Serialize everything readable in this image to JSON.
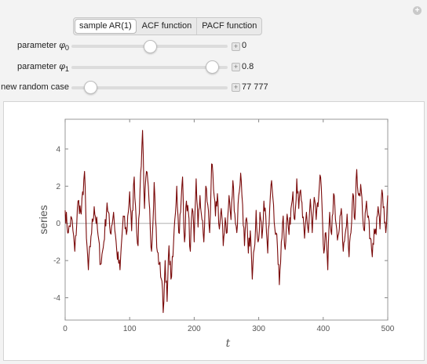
{
  "tabs": [
    {
      "label": "sample AR(1)",
      "active": true
    },
    {
      "label": "ACF function",
      "active": false
    },
    {
      "label": "PACF function",
      "active": false
    }
  ],
  "controls": [
    {
      "label_prefix": "parameter ",
      "symbol": "φ",
      "subscript": "0",
      "value": "0",
      "fraction": 0.5
    },
    {
      "label_prefix": "parameter ",
      "symbol": "φ",
      "subscript": "1",
      "value": "0.8",
      "fraction": 0.9
    },
    {
      "label_prefix": "new random case",
      "symbol": "",
      "subscript": "",
      "value": "77 777",
      "fraction": 0.12
    }
  ],
  "chart_data": {
    "type": "line",
    "xlabel": "t",
    "ylabel": "series",
    "xlim": [
      0,
      500
    ],
    "ylim": [
      -5.2,
      5.6
    ],
    "xticks": [
      0,
      100,
      200,
      300,
      400,
      500
    ],
    "yticks": [
      -4,
      -2,
      0,
      2,
      4
    ],
    "series_color": "#7a0a0a",
    "keypoints": [
      [
        0,
        0.7
      ],
      [
        5,
        -0.5
      ],
      [
        10,
        0.3
      ],
      [
        15,
        -1.5
      ],
      [
        20,
        1.2
      ],
      [
        25,
        0.5
      ],
      [
        30,
        2.8
      ],
      [
        33,
        -0.8
      ],
      [
        36,
        -2.5
      ],
      [
        40,
        -0.7
      ],
      [
        45,
        0.9
      ],
      [
        50,
        -0.3
      ],
      [
        55,
        -2.2
      ],
      [
        60,
        -1.0
      ],
      [
        65,
        1.1
      ],
      [
        70,
        -0.5
      ],
      [
        75,
        0.6
      ],
      [
        80,
        -1.5
      ],
      [
        85,
        -2.5
      ],
      [
        90,
        0.4
      ],
      [
        95,
        -0.6
      ],
      [
        100,
        1.7
      ],
      [
        103,
        -0.4
      ],
      [
        107,
        2.5
      ],
      [
        110,
        0.3
      ],
      [
        113,
        -1.2
      ],
      [
        116,
        1.8
      ],
      [
        120,
        5.0
      ],
      [
        123,
        0.8
      ],
      [
        126,
        2.8
      ],
      [
        130,
        1.2
      ],
      [
        134,
        -1.5
      ],
      [
        138,
        2.2
      ],
      [
        142,
        -1.3
      ],
      [
        146,
        -2.2
      ],
      [
        150,
        -3.1
      ],
      [
        152,
        -4.8
      ],
      [
        155,
        -2.0
      ],
      [
        158,
        -4.2
      ],
      [
        161,
        -1.2
      ],
      [
        164,
        -3.0
      ],
      [
        167,
        -1.8
      ],
      [
        170,
        0.2
      ],
      [
        173,
        2.0
      ],
      [
        176,
        -0.5
      ],
      [
        179,
        0.6
      ],
      [
        182,
        2.5
      ],
      [
        185,
        -1.0
      ],
      [
        188,
        1.2
      ],
      [
        191,
        0.6
      ],
      [
        194,
        -1.5
      ],
      [
        197,
        0.8
      ],
      [
        200,
        -1.0
      ],
      [
        203,
        2.4
      ],
      [
        206,
        -0.2
      ],
      [
        209,
        1.5
      ],
      [
        212,
        0.2
      ],
      [
        215,
        -1.0
      ],
      [
        218,
        2.0
      ],
      [
        221,
        1.0
      ],
      [
        224,
        -0.5
      ],
      [
        227,
        3.2
      ],
      [
        230,
        1.8
      ],
      [
        233,
        0.4
      ],
      [
        236,
        1.6
      ],
      [
        239,
        -0.3
      ],
      [
        242,
        0.8
      ],
      [
        245,
        -1.2
      ],
      [
        248,
        0.3
      ],
      [
        251,
        -0.5
      ],
      [
        254,
        1.5
      ],
      [
        257,
        0.2
      ],
      [
        260,
        2.3
      ],
      [
        263,
        0.5
      ],
      [
        266,
        -0.5
      ],
      [
        269,
        1.5
      ],
      [
        272,
        2.7
      ],
      [
        275,
        1.0
      ],
      [
        278,
        -1.2
      ],
      [
        281,
        0.3
      ],
      [
        284,
        -1.6
      ],
      [
        287,
        -0.4
      ],
      [
        290,
        -3.0
      ],
      [
        293,
        -1.4
      ],
      [
        296,
        0.7
      ],
      [
        299,
        -1.0
      ],
      [
        302,
        0.6
      ],
      [
        305,
        -0.8
      ],
      [
        308,
        1.2
      ],
      [
        311,
        0.4
      ],
      [
        314,
        -1.6
      ],
      [
        317,
        0.8
      ],
      [
        320,
        2.3
      ],
      [
        323,
        1.0
      ],
      [
        326,
        -0.6
      ],
      [
        329,
        -1.2
      ],
      [
        332,
        -3.3
      ],
      [
        335,
        -1.0
      ],
      [
        338,
        0.4
      ],
      [
        341,
        -1.4
      ],
      [
        344,
        0.5
      ],
      [
        347,
        -0.6
      ],
      [
        350,
        0.8
      ],
      [
        353,
        1.7
      ],
      [
        356,
        0.2
      ],
      [
        359,
        2.4
      ],
      [
        362,
        0.8
      ],
      [
        365,
        1.8
      ],
      [
        368,
        0.3
      ],
      [
        371,
        -0.8
      ],
      [
        374,
        0.6
      ],
      [
        377,
        -0.5
      ],
      [
        380,
        1.3
      ],
      [
        383,
        -0.5
      ],
      [
        386,
        1.4
      ],
      [
        389,
        0.2
      ],
      [
        392,
        0.9
      ],
      [
        395,
        2.6
      ],
      [
        398,
        1.0
      ],
      [
        401,
        -1.6
      ],
      [
        404,
        -0.5
      ],
      [
        407,
        -2.5
      ],
      [
        410,
        0.6
      ],
      [
        413,
        -0.6
      ],
      [
        416,
        1.6
      ],
      [
        419,
        0.2
      ],
      [
        422,
        -0.9
      ],
      [
        425,
        -0.3
      ],
      [
        428,
        0.8
      ],
      [
        431,
        -1.5
      ],
      [
        434,
        -0.6
      ],
      [
        437,
        0.5
      ],
      [
        440,
        -1.8
      ],
      [
        443,
        -0.5
      ],
      [
        446,
        1.6
      ],
      [
        449,
        0.2
      ],
      [
        452,
        2.9
      ],
      [
        455,
        1.5
      ],
      [
        458,
        2.1
      ],
      [
        461,
        0.5
      ],
      [
        464,
        -0.4
      ],
      [
        467,
        1.2
      ],
      [
        470,
        0.4
      ],
      [
        473,
        -0.8
      ],
      [
        476,
        -1.8
      ],
      [
        479,
        -0.3
      ],
      [
        482,
        -0.6
      ],
      [
        485,
        0.9
      ],
      [
        488,
        -0.3
      ],
      [
        491,
        1.8
      ],
      [
        494,
        0.9
      ],
      [
        497,
        -0.5
      ],
      [
        500,
        1.5
      ]
    ]
  }
}
